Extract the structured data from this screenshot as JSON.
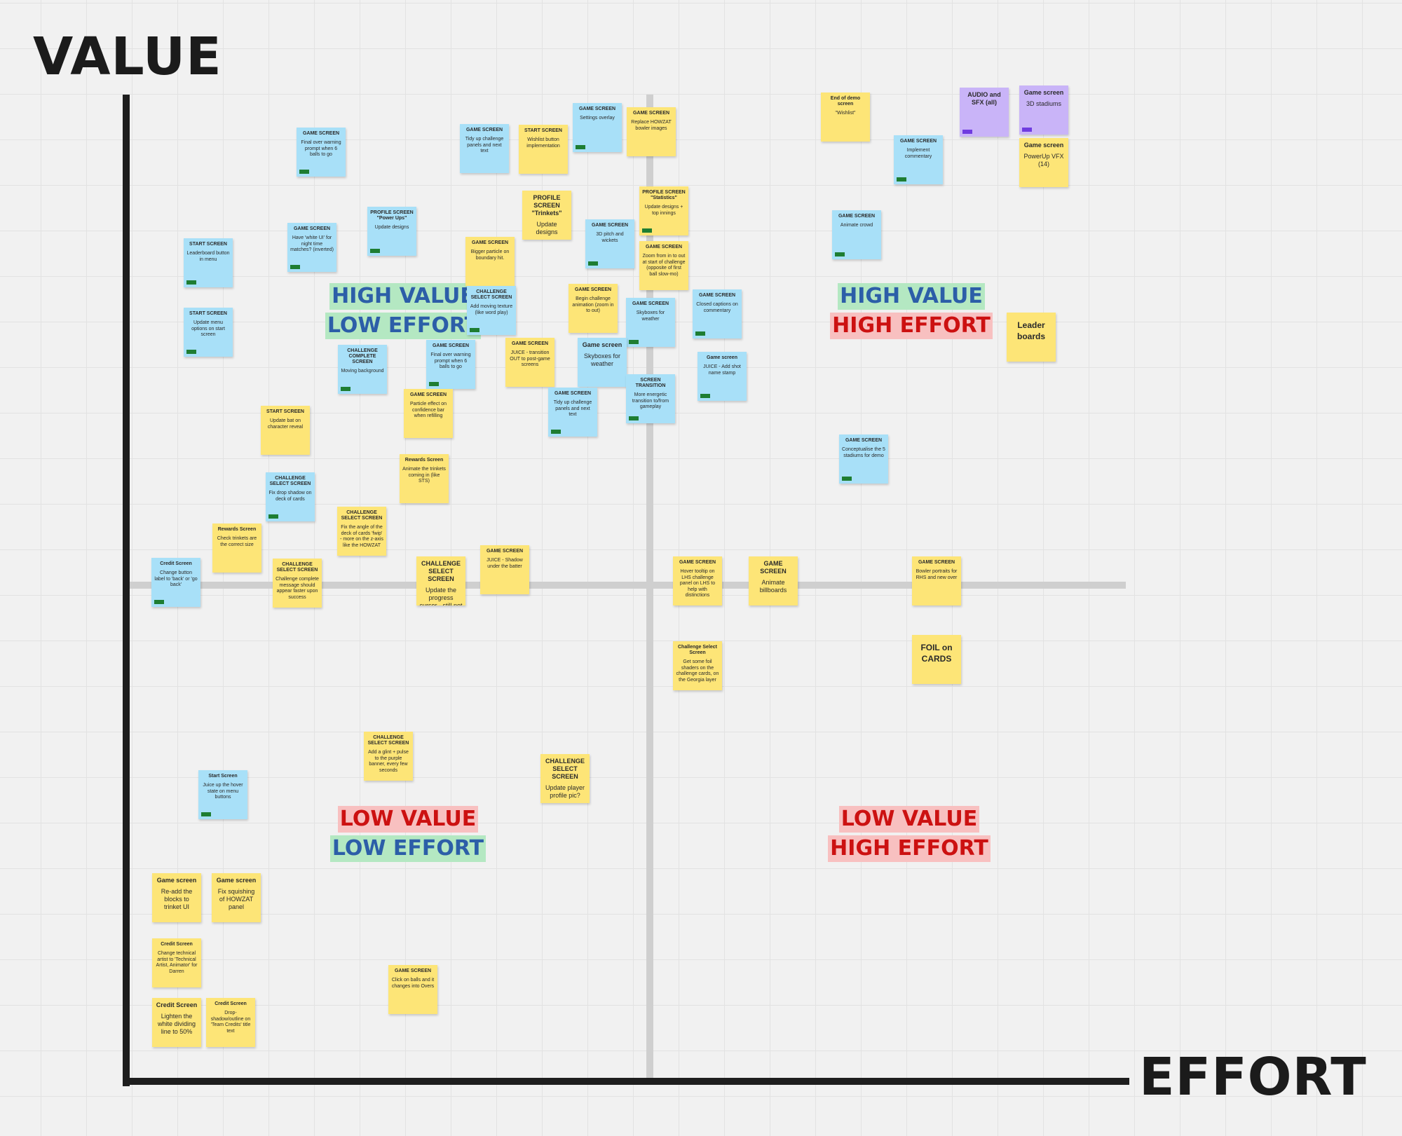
{
  "axes": {
    "y_label": "VALUE",
    "x_label": "EFFORT"
  },
  "colors": {
    "yellow": "#fde577",
    "blue": "#a8e0f8",
    "purple": "#c9b4f8",
    "green_tag": "#1e7d32",
    "purple_tag": "#6f3ce0",
    "blue_text": "#2c5ea8",
    "red_text": "#cc1111",
    "green_bg": "#b4e8c2",
    "red_bg": "#f8c0c0"
  },
  "quadrants": [
    {
      "line1": "HIGH VALUE",
      "line2": "LOW EFFORT"
    },
    {
      "line1": "HIGH VALUE",
      "line2": "HIGH EFFORT"
    },
    {
      "line1": "LOW VALUE",
      "line2": "LOW EFFORT"
    },
    {
      "line1": "LOW VALUE",
      "line2": "HIGH EFFORT"
    }
  ],
  "notes": [
    {
      "title": "GAME SCREEN",
      "body": "Final over warning prompt when 6 balls to go",
      "color": "blue",
      "tag": "green"
    },
    {
      "title": "GAME SCREEN",
      "body": "Tidy up challenge panels and next text",
      "color": "blue",
      "tag": ""
    },
    {
      "title": "START SCREEN",
      "body": "Wishlist button implementation",
      "color": "yellow",
      "tag": ""
    },
    {
      "title": "GAME SCREEN",
      "body": "Settings overlay",
      "color": "blue",
      "tag": "green"
    },
    {
      "title": "GAME SCREEN",
      "body": "Replace HOWZAT bowler images",
      "color": "yellow",
      "tag": ""
    },
    {
      "title": "End of demo screen",
      "body": "\"Wishlist\"",
      "color": "yellow",
      "tag": ""
    },
    {
      "title": "AUDIO and SFX (all)",
      "body": "",
      "color": "purple",
      "tag": "purple"
    },
    {
      "title": "Game screen",
      "body": "3D stadiums",
      "color": "purple",
      "tag": "purple"
    },
    {
      "title": "GAME SCREEN",
      "body": "Implement commentary",
      "color": "blue",
      "tag": "green"
    },
    {
      "title": "Game screen",
      "body": "PowerUp VFX (14)",
      "color": "yellow",
      "tag": ""
    },
    {
      "title": "START SCREEN",
      "body": "Leaderboard button in menu",
      "color": "blue",
      "tag": "green"
    },
    {
      "title": "GAME SCREEN",
      "body": "Have 'white UI' for night time matches? (inverted)",
      "color": "blue",
      "tag": "green"
    },
    {
      "title": "PROFILE SCREEN \"Power Ups\"",
      "body": "Update designs",
      "color": "blue",
      "tag": "green"
    },
    {
      "title": "PROFILE SCREEN \"Trinkets\"",
      "body": "Update designs",
      "color": "yellow",
      "tag": ""
    },
    {
      "title": "GAME SCREEN",
      "body": "3D pitch and wickets",
      "color": "blue",
      "tag": "green"
    },
    {
      "title": "PROFILE SCREEN \"Statistics\"",
      "body": "Update designs + top innings",
      "color": "yellow",
      "tag": "green"
    },
    {
      "title": "GAME SCREEN",
      "body": "Bigger particle on boundary hit.",
      "color": "yellow",
      "tag": ""
    },
    {
      "title": "GAME SCREEN",
      "body": "Zoom from in to out at start of challenge (opposite of first ball slow-mo)",
      "color": "yellow",
      "tag": ""
    },
    {
      "title": "GAME SCREEN",
      "body": "Animate crowd",
      "color": "blue",
      "tag": "green"
    },
    {
      "title": "START SCREEN",
      "body": "Update menu options on start screen",
      "color": "blue",
      "tag": "green"
    },
    {
      "title": "CHALLENGE SELECT SCREEN",
      "body": "Add moving texture (like word play)",
      "color": "blue",
      "tag": "green"
    },
    {
      "title": "GAME SCREEN",
      "body": "Begin challenge animation (zoom in to out)",
      "color": "yellow",
      "tag": ""
    },
    {
      "title": "GAME SCREEN",
      "body": "Skyboxes for weather",
      "color": "blue",
      "tag": "green"
    },
    {
      "title": "GAME SCREEN",
      "body": "Closed captions on commentary",
      "color": "blue",
      "tag": "green"
    },
    {
      "title": "",
      "body": "Leader boards",
      "color": "yellow",
      "tag": ""
    },
    {
      "title": "CHALLENGE COMPLETE SCREEN",
      "body": "Moving background",
      "color": "blue",
      "tag": "green"
    },
    {
      "title": "GAME SCREEN",
      "body": "Final over warning prompt when 6 balls to go",
      "color": "blue",
      "tag": "green"
    },
    {
      "title": "GAME SCREEN",
      "body": "JUICE - transition OUT to post-game screens",
      "color": "yellow",
      "tag": ""
    },
    {
      "title": "Game screen",
      "body": "Skyboxes for weather",
      "color": "blue",
      "tag": ""
    },
    {
      "title": "Game screen",
      "body": "JUICE - Add shot name stamp",
      "color": "blue",
      "tag": "green"
    },
    {
      "title": "GAME SCREEN",
      "body": "Particle effect on confidence bar when refilling",
      "color": "yellow",
      "tag": ""
    },
    {
      "title": "GAME SCREEN",
      "body": "Tidy up challenge panels and next text",
      "color": "blue",
      "tag": "green"
    },
    {
      "title": "SCREEN TRANSITION",
      "body": "More energetic transition to/from gameplay",
      "color": "blue",
      "tag": "green"
    },
    {
      "title": "START SCREEN",
      "body": "Update bat on character reveal",
      "color": "yellow",
      "tag": ""
    },
    {
      "title": "GAME SCREEN",
      "body": "Conceptualise the 5 stadiums for demo",
      "color": "blue",
      "tag": "green"
    },
    {
      "title": "Rewards Screen",
      "body": "Animate the trinkets coming in (like STS)",
      "color": "yellow",
      "tag": ""
    },
    {
      "title": "CHALLENGE SELECT SCREEN",
      "body": "Fix drop shadow on deck of cards",
      "color": "blue",
      "tag": "green"
    },
    {
      "title": "CHALLENGE SELECT SCREEN",
      "body": "Fix the angle of the deck of cards 'fwip' - more on the z-axis like the HOWZAT",
      "color": "yellow",
      "tag": ""
    },
    {
      "title": "Rewards Screen",
      "body": "Check trinkets are the correct size",
      "color": "yellow",
      "tag": ""
    },
    {
      "title": "GAME SCREEN",
      "body": "JUICE - Shadow under the batter",
      "color": "yellow",
      "tag": ""
    },
    {
      "title": "Credit Screen",
      "body": "Change button label to 'back' or 'go back'",
      "color": "blue",
      "tag": "green"
    },
    {
      "title": "CHALLENGE SELECT SCREEN",
      "body": "Challenge complete message should appear faster upon success",
      "color": "yellow",
      "tag": ""
    },
    {
      "title": "CHALLENGE SELECT SCREEN",
      "body": "Update the progress cursor - still not right.",
      "color": "yellow",
      "tag": ""
    },
    {
      "title": "GAME SCREEN",
      "body": "Hover tooltip on LHS challenge panel on LHS to help with distinctions",
      "color": "yellow",
      "tag": ""
    },
    {
      "title": "GAME SCREEN",
      "body": "Animate billboards",
      "color": "yellow",
      "tag": ""
    },
    {
      "title": "GAME SCREEN",
      "body": "Bowler portraits for RHS and new over",
      "color": "yellow",
      "tag": ""
    },
    {
      "title": "Challenge Select Screen",
      "body": "Get some foil shaders on the challenge cards, on the Georgia layer",
      "color": "yellow",
      "tag": ""
    },
    {
      "title": "",
      "body": "FOIL on CARDS",
      "color": "yellow",
      "tag": ""
    },
    {
      "title": "CHALLENGE SELECT SCREEN",
      "body": "Add a glint + pulse to the purple banner, every few seconds",
      "color": "yellow",
      "tag": ""
    },
    {
      "title": "CHALLENGE SELECT SCREEN",
      "body": "Update player profile pic?",
      "color": "yellow",
      "tag": ""
    },
    {
      "title": "Start Screen",
      "body": "Juice up the hover state on menu buttons",
      "color": "blue",
      "tag": "green"
    },
    {
      "title": "Game screen",
      "body": "Re-add the blocks to trinket UI",
      "color": "yellow",
      "tag": ""
    },
    {
      "title": "Game screen",
      "body": "Fix squishing of HOWZAT panel",
      "color": "yellow",
      "tag": ""
    },
    {
      "title": "Credit Screen",
      "body": "Change technical artist to 'Technical Artist, Animator' for Darren",
      "color": "yellow",
      "tag": ""
    },
    {
      "title": "GAME SCREEN",
      "body": "Click on balls and it changes into Overs",
      "color": "yellow",
      "tag": ""
    },
    {
      "title": "Credit Screen",
      "body": "Lighten the white dividing line to 50%",
      "color": "yellow",
      "tag": ""
    },
    {
      "title": "Credit Screen",
      "body": "Drop-shadow/outline on 'Team Credits' title text",
      "color": "yellow",
      "tag": ""
    }
  ]
}
